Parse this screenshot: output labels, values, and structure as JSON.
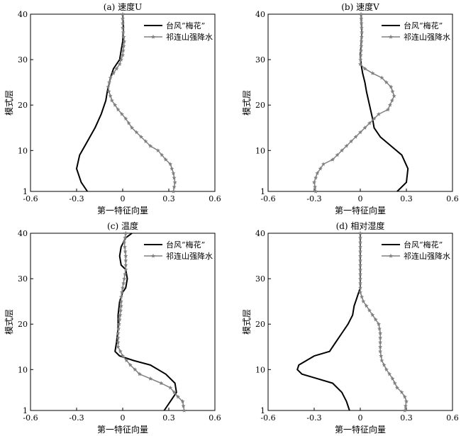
{
  "chart_data": [
    {
      "type": "line",
      "title": "(a) 速度U",
      "xlabel": "第一特征向量",
      "ylabel": "模式层",
      "xlim": [
        -0.6,
        0.6
      ],
      "ylim": [
        1,
        40
      ],
      "xticks": [
        "-0.6",
        "-0.3",
        "0",
        "0.3",
        "0.6"
      ],
      "yticks": [
        "1",
        "10",
        "20",
        "30",
        "40"
      ],
      "legend_position": "top-right",
      "series": [
        {
          "name": "台风“梅花”",
          "color": "#000000",
          "marker": "none",
          "x": [
            -0.23,
            -0.27,
            -0.3,
            -0.28,
            -0.23,
            -0.18,
            -0.14,
            -0.11,
            -0.1,
            -0.08,
            -0.06,
            -0.04,
            -0.02,
            -0.01,
            0.0,
            0.005,
            0.0
          ],
          "y": [
            1,
            3,
            6,
            9,
            12,
            15,
            18,
            21,
            23,
            26,
            28,
            29,
            30,
            32,
            34,
            37,
            40
          ]
        },
        {
          "name": "祁连山强降水",
          "color": "#808080",
          "marker": "star",
          "x": [
            0.33,
            0.34,
            0.33,
            0.31,
            0.28,
            0.23,
            0.18,
            0.12,
            0.06,
            0.02,
            -0.03,
            -0.07,
            -0.09,
            -0.095,
            -0.08,
            -0.06,
            -0.04,
            -0.02,
            0.0,
            0.01,
            0.0,
            0.0
          ],
          "y": [
            1,
            3,
            5,
            7,
            8,
            10,
            11,
            13,
            15,
            17,
            19,
            21,
            23,
            24,
            26,
            27,
            28,
            29,
            31,
            34,
            37,
            40
          ]
        }
      ]
    },
    {
      "type": "line",
      "title": "(b) 速度V",
      "xlabel": "第一特征向量",
      "ylabel": "模式层",
      "xlim": [
        -0.6,
        0.6
      ],
      "ylim": [
        1,
        40
      ],
      "xticks": [
        "-0.6",
        "-0.3",
        "0",
        "0.3",
        "0.6"
      ],
      "yticks": [
        "1",
        "10",
        "20",
        "30",
        "40"
      ],
      "legend_position": "top-right",
      "series": [
        {
          "name": "台风“梅花”",
          "color": "#000000",
          "marker": "none",
          "x": [
            0.24,
            0.3,
            0.31,
            0.27,
            0.2,
            0.13,
            0.09,
            0.08,
            0.06,
            0.04,
            0.03,
            0.015,
            0.005,
            0.0,
            0.005,
            0.01,
            0.005
          ],
          "y": [
            1,
            3,
            6,
            9,
            11,
            13,
            15,
            17,
            20,
            23,
            25,
            27,
            29,
            31,
            33,
            36,
            40
          ]
        },
        {
          "name": "祁连山强降水",
          "color": "#808080",
          "marker": "star",
          "x": [
            -0.29,
            -0.3,
            -0.28,
            -0.24,
            -0.18,
            -0.12,
            -0.06,
            0.0,
            0.06,
            0.12,
            0.18,
            0.22,
            0.2,
            0.14,
            0.08,
            0.03,
            0.0,
            0.005,
            0.01,
            0.005
          ],
          "y": [
            1,
            3,
            5,
            7,
            8,
            10,
            12,
            14,
            16,
            18,
            19,
            22,
            24,
            26,
            27,
            28,
            29,
            32,
            36,
            40
          ]
        }
      ]
    },
    {
      "type": "line",
      "title": "(c) 温度",
      "xlabel": "第一特征向量",
      "ylabel": "模式层",
      "xlim": [
        -0.6,
        0.6
      ],
      "ylim": [
        1,
        40
      ],
      "xticks": [
        "-0.6",
        "-0.3",
        "0",
        "0.3",
        "0.6"
      ],
      "yticks": [
        "1",
        "10",
        "20",
        "30",
        "40"
      ],
      "legend_position": "top-right",
      "series": [
        {
          "name": "台风“梅花”",
          "color": "#000000",
          "marker": "none",
          "x": [
            0.27,
            0.31,
            0.35,
            0.34,
            0.28,
            0.18,
            0.07,
            -0.02,
            -0.05,
            -0.04,
            -0.03,
            -0.03,
            -0.02,
            0.0,
            0.02,
            0.03,
            0.02,
            -0.01,
            -0.02,
            -0.01,
            0.02,
            0.06
          ],
          "y": [
            1,
            3,
            5,
            7,
            9,
            11,
            12,
            13,
            14,
            16,
            19,
            22,
            25,
            27,
            28,
            30,
            32,
            33,
            35,
            37,
            39,
            40
          ]
        },
        {
          "name": "祁连山强降水",
          "color": "#808080",
          "marker": "star",
          "x": [
            0.4,
            0.39,
            0.36,
            0.31,
            0.25,
            0.18,
            0.11,
            0.05,
            0.0,
            -0.03,
            -0.03,
            -0.02,
            -0.01,
            -0.01,
            0.0,
            0.01,
            0.02,
            0.02,
            0.01,
            0.02
          ],
          "y": [
            1,
            3,
            4,
            6,
            7,
            8,
            9,
            11,
            13,
            15,
            18,
            21,
            24,
            26,
            28,
            30,
            32,
            35,
            38,
            40
          ]
        }
      ]
    },
    {
      "type": "line",
      "title": "(d) 相对湿度",
      "xlabel": "第一特征向量",
      "ylabel": "模式层",
      "xlim": [
        -0.6,
        0.6
      ],
      "ylim": [
        1,
        40
      ],
      "xticks": [
        "-0.6",
        "-0.3",
        "0",
        "0.3",
        "0.6"
      ],
      "yticks": [
        "1",
        "10",
        "20",
        "30",
        "40"
      ],
      "legend_position": "top-right",
      "series": [
        {
          "name": "台风“梅花”",
          "color": "#000000",
          "marker": "none",
          "x": [
            -0.07,
            -0.09,
            -0.12,
            -0.18,
            -0.28,
            -0.38,
            -0.41,
            -0.4,
            -0.3,
            -0.2,
            -0.16,
            -0.12,
            -0.08,
            -0.05,
            -0.04,
            -0.03,
            -0.02,
            -0.01,
            0.0,
            0.0,
            0.0,
            0.0
          ],
          "y": [
            1,
            3,
            5,
            7,
            8,
            9,
            10,
            11,
            13,
            14,
            16,
            18,
            20,
            22,
            24,
            25,
            26,
            27,
            28,
            30,
            35,
            40
          ]
        },
        {
          "name": "祁连山强降水",
          "color": "#808080",
          "marker": "star",
          "x": [
            0.29,
            0.3,
            0.29,
            0.27,
            0.24,
            0.21,
            0.17,
            0.14,
            0.13,
            0.13,
            0.13,
            0.12,
            0.1,
            0.08,
            0.06,
            0.04,
            0.02,
            0.01,
            0.0,
            0.0,
            0.0,
            0.0
          ],
          "y": [
            1,
            3,
            4,
            5,
            6,
            8,
            10,
            12,
            14,
            16,
            18,
            20,
            21,
            22,
            23,
            24,
            25,
            26,
            27,
            30,
            35,
            40
          ]
        }
      ]
    }
  ]
}
